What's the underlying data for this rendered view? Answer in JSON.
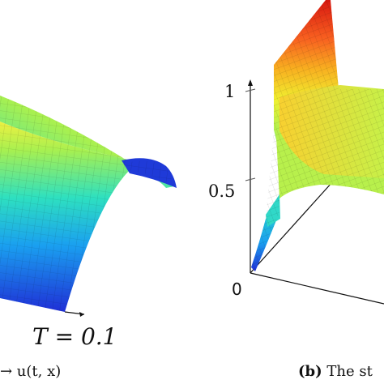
{
  "chart_data": [
    {
      "type": "surface",
      "panel_label": "",
      "parameter_label": "T = 0.1",
      "caption_fragment": "→ u(t, x)",
      "colormap": [
        "#1f2fd6",
        "#1aa0f0",
        "#2ee0c0",
        "#a8f050",
        "#f0f030",
        "#f8a020",
        "#e83018"
      ],
      "profile": "arched surface, cut off by the left edge; low values dominate (blue-cyan), ridge at yellow-green"
    },
    {
      "type": "surface",
      "panel_label": "(b)",
      "caption_fragment": "The st",
      "z_ticks": [
        {
          "value": 0,
          "label": "0"
        },
        {
          "value": 0.5,
          "label": "0.5"
        },
        {
          "value": 1,
          "label": "1"
        }
      ],
      "zlim": [
        0,
        1
      ],
      "colormap": [
        "#1f2fd6",
        "#1aa0f0",
        "#2ee0c0",
        "#a8f050",
        "#f0f030",
        "#f8a020",
        "#d81810"
      ],
      "profile": "sharp front rising to 1 at the back edge, decaying to a plateau near 0.5"
    }
  ]
}
